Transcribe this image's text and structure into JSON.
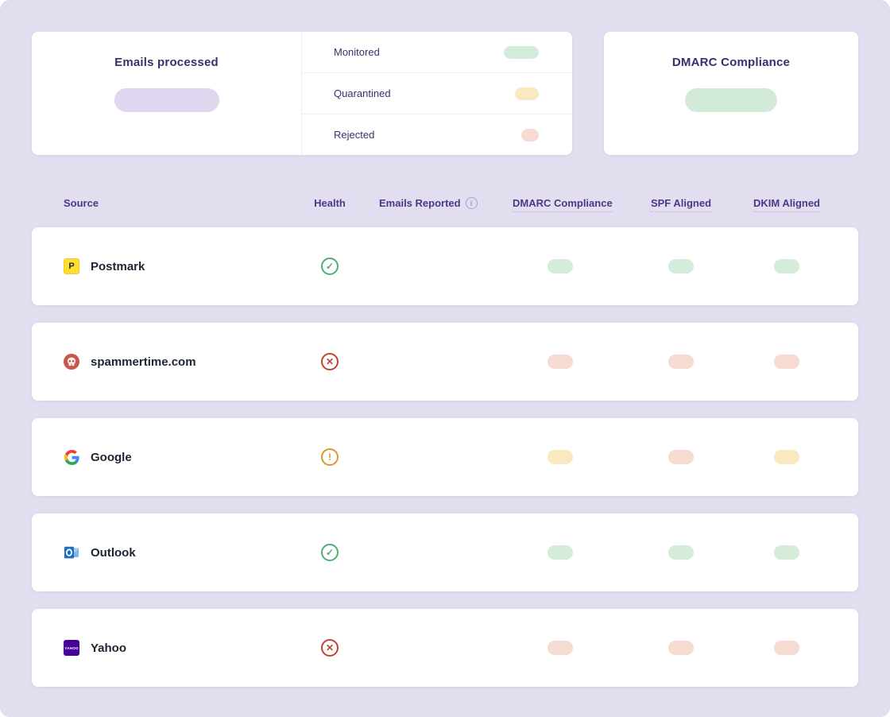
{
  "theme": {
    "background": "#E3DDF0",
    "card": "#FFFFFF",
    "pill_purple": "#DED7F0",
    "pill_green": "#D5ECDB",
    "pill_yellow": "#F9E9C1",
    "pill_red": "#F5DBD2",
    "health_pass": "#4FAE73",
    "health_fail": "#C14231",
    "health_warn": "#D49B2E"
  },
  "summary_cards": {
    "emails_processed": {
      "title": "Emails processed"
    },
    "legend_rows": [
      {
        "label": "Monitored",
        "status": "monitored",
        "pill_width": 44
      },
      {
        "label": "Quarantined",
        "status": "quarantined",
        "pill_width": 30
      },
      {
        "label": "Rejected",
        "status": "rejected",
        "pill_width": 22
      }
    ],
    "dmarc_compliance": {
      "title": "DMARC Compliance"
    }
  },
  "table": {
    "headers": {
      "source": "Source",
      "health": "Health",
      "emails_reported": "Emails Reported",
      "info_icon_glyph": "i",
      "dmarc": "DMARC Compliance",
      "spf": "SPF Aligned",
      "dkim": "DKIM Aligned"
    },
    "health_glyphs": {
      "pass": "✓",
      "fail": "✕",
      "warn": "!"
    },
    "rows": [
      {
        "source": "Postmark",
        "icon": "postmark-icon",
        "health": "pass",
        "emails_pill_width": 82,
        "dmarc": "pass",
        "spf": "pass",
        "dkim": "pass"
      },
      {
        "source": "spammertime.com",
        "icon": "spammertime-icon",
        "health": "fail",
        "emails_pill_width": 82,
        "dmarc": "fail",
        "spf": "fail",
        "dkim": "fail"
      },
      {
        "source": "Google",
        "icon": "google-icon",
        "health": "warn",
        "emails_pill_width": 60,
        "dmarc": "warn",
        "spf": "fail",
        "dkim": "warn"
      },
      {
        "source": "Outlook",
        "icon": "outlook-icon",
        "health": "pass",
        "emails_pill_width": 38,
        "dmarc": "pass",
        "spf": "pass",
        "dkim": "pass"
      },
      {
        "source": "Yahoo",
        "icon": "yahoo-icon",
        "health": "fail",
        "emails_pill_width": 32,
        "dmarc": "fail",
        "spf": "fail",
        "dkim": "fail"
      }
    ],
    "postmark_glyph": "P",
    "yahoo_glyph": "YAHOO"
  }
}
